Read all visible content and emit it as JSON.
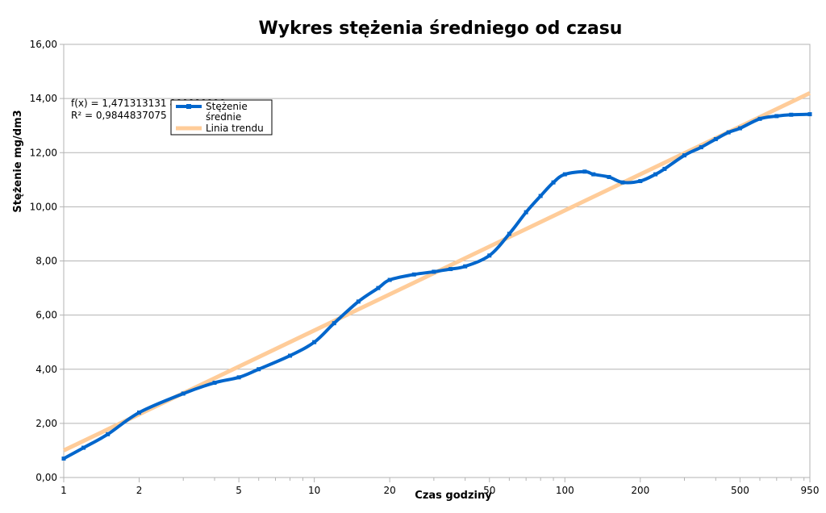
{
  "chart_data": {
    "type": "line",
    "title": "Wykres stężenia średniego od czasu",
    "xlabel": "Czas godziny",
    "ylabel": "Stężenie mg/dm3",
    "x_scale": "log",
    "xlim": [
      1,
      950
    ],
    "ylim": [
      0,
      16
    ],
    "x_ticks": [
      1,
      2,
      5,
      10,
      20,
      50,
      100,
      200,
      500,
      950
    ],
    "y_ticks": [
      "0,00",
      "2,00",
      "4,00",
      "6,00",
      "8,00",
      "10,00",
      "12,00",
      "14,00",
      "16,00"
    ],
    "grid": "horizontal",
    "legend": {
      "position": "top-left",
      "entries": [
        {
          "label_line1": "Stężenie",
          "label_line2": "średnie",
          "color": "#0066cc"
        },
        {
          "label_line1": "Linia trendu",
          "label_line2": "",
          "color": "#ffcc99"
        }
      ]
    },
    "trendline": {
      "equation": "f(x) = 1,471313131                              888888886",
      "r_squared": "R² = 0,9844837075",
      "x": [
        1,
        950
      ],
      "y": [
        1.0,
        14.2
      ]
    },
    "series": [
      {
        "name": "Stężenie średnie",
        "color": "#0066cc",
        "x": [
          1,
          1.2,
          1.5,
          2,
          3,
          4,
          5,
          6,
          8,
          10,
          12,
          15,
          18,
          20,
          25,
          30,
          35,
          40,
          50,
          60,
          70,
          80,
          90,
          100,
          120,
          130,
          150,
          170,
          200,
          230,
          250,
          300,
          350,
          400,
          450,
          500,
          600,
          700,
          800,
          950
        ],
        "y": [
          0.7,
          1.1,
          1.6,
          2.4,
          3.1,
          3.5,
          3.7,
          4.0,
          4.5,
          5.0,
          5.7,
          6.5,
          7.0,
          7.3,
          7.5,
          7.6,
          7.7,
          7.8,
          8.2,
          9.0,
          9.8,
          10.4,
          10.9,
          11.2,
          11.3,
          11.2,
          11.1,
          10.9,
          10.95,
          11.2,
          11.4,
          11.9,
          12.2,
          12.5,
          12.75,
          12.9,
          13.25,
          13.35,
          13.4,
          13.42
        ]
      }
    ]
  }
}
